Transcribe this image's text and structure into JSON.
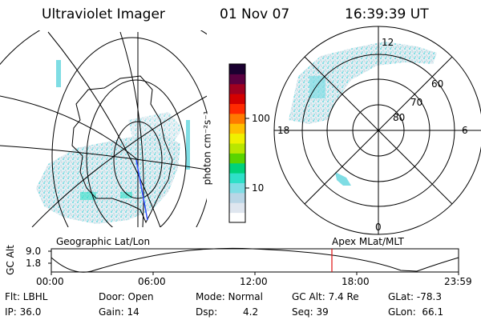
{
  "header": {
    "instrument": "Ultraviolet Imager",
    "date": "01 Nov 07",
    "time": "16:39:39 UT"
  },
  "colorbar": {
    "unit_label": "photon cm⁻²s⁻¹",
    "ticks": [
      "100",
      "10"
    ],
    "colors": [
      "#ffffff",
      "#dfe6ef",
      "#b9d6e6",
      "#7fdde4",
      "#2ee0c8",
      "#00d27a",
      "#5ad400",
      "#b9e600",
      "#f0f000",
      "#ffbf00",
      "#ff7a00",
      "#ff2a00",
      "#d40000",
      "#a00020",
      "#5a0040",
      "#1a0030"
    ]
  },
  "polar_grid": {
    "mlt_labels": {
      "top": "12",
      "left": "18",
      "right": "6",
      "bottom": "0"
    },
    "lat_labels": [
      "60",
      "70",
      "80"
    ]
  },
  "timeline": {
    "y_axis_label": "GC Alt",
    "y_ticks": [
      "9.0",
      "1.8"
    ],
    "left_title": "Geographic Lat/Lon",
    "right_title": "Apex MLat/MLT",
    "x_ticks": [
      "00:00",
      "06:00",
      "12:00",
      "18:00",
      "23:59"
    ],
    "marker_time": "16:39",
    "marker_color": "#e01010"
  },
  "info": {
    "filter": "Flt: LBHL",
    "ip": "IP: 36.0",
    "door": "Door: Open",
    "gain": "Gain: 14",
    "mode": "Mode: Normal",
    "dsp_label": "Dsp:",
    "dsp_value": "4.2",
    "gc_alt": "GC Alt: 7.4 Re",
    "seq": "Seq: 39",
    "glat": "GLat: -78.3",
    "glon": "GLon:  66.1"
  }
}
